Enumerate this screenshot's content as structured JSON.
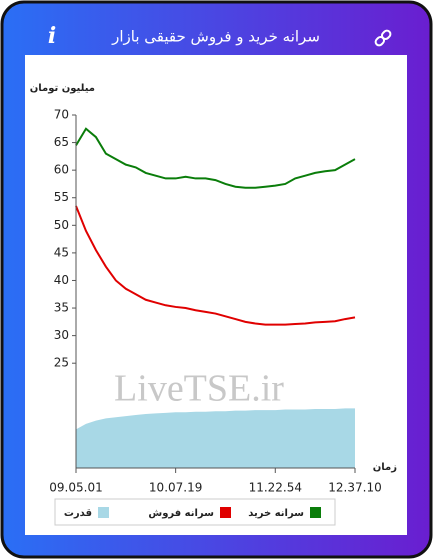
{
  "header": {
    "icon": "i",
    "title": "سرانه خرید و فروش حقیقی بازار"
  },
  "chart_data": {
    "type": "line",
    "ylabel": "میلیون تومان",
    "xlabel": "زمان",
    "watermark": "LiveTSE.ir",
    "categories": [
      "09.05.01",
      null,
      null,
      null,
      null,
      null,
      null,
      null,
      null,
      null,
      "10.07.19",
      null,
      null,
      null,
      null,
      null,
      null,
      null,
      null,
      null,
      "11.22.54",
      null,
      null,
      null,
      null,
      null,
      null,
      null,
      "12.37.10"
    ],
    "ylim": [
      6,
      70
    ],
    "yticks": [
      25,
      30,
      35,
      40,
      45,
      50,
      55,
      60,
      65,
      70
    ],
    "series": [
      {
        "name": "سرانه خرید",
        "color": "#0a7d0a",
        "values": [
          64.5,
          67.5,
          66,
          63,
          62,
          61,
          60.5,
          59.5,
          59,
          58.5,
          58.5,
          58.8,
          58.5,
          58.5,
          58.2,
          57.5,
          57,
          56.8,
          56.8,
          57,
          57.2,
          57.5,
          58.5,
          59,
          59.5,
          59.8,
          60,
          61,
          62
        ]
      },
      {
        "name": "سرانه فروش",
        "color": "#e00000",
        "values": [
          53.5,
          49,
          45.5,
          42.5,
          40,
          38.5,
          37.5,
          36.5,
          36,
          35.5,
          35.2,
          35,
          34.6,
          34.3,
          34,
          33.5,
          33,
          32.5,
          32.2,
          32,
          32,
          32,
          32.1,
          32.2,
          32.4,
          32.5,
          32.6,
          33,
          33.3
        ]
      },
      {
        "name": "قدرت",
        "color": "#a8d8e6",
        "type": "area",
        "values": [
          13,
          14,
          14.6,
          15,
          15.2,
          15.4,
          15.6,
          15.8,
          15.9,
          16,
          16.1,
          16.1,
          16.2,
          16.2,
          16.3,
          16.3,
          16.4,
          16.4,
          16.5,
          16.5,
          16.5,
          16.6,
          16.6,
          16.6,
          16.7,
          16.7,
          16.7,
          16.8,
          16.8
        ]
      }
    ]
  }
}
